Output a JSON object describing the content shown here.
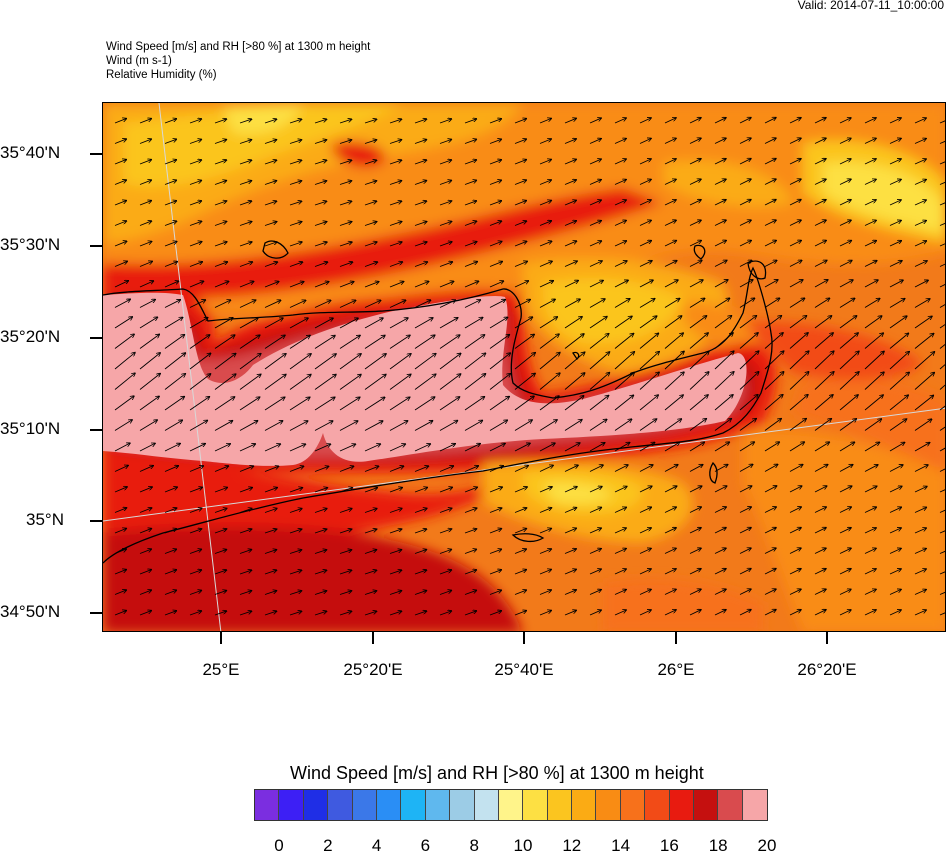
{
  "valid_time": "Valid: 2014-07-11_10:00:00",
  "titles": {
    "line1": "Wind Speed [m/s] and RH [>80 %] at 1300 m height",
    "line2": "Wind   (m s-1)",
    "line3": "Relative Humidity   (%)"
  },
  "axes": {
    "lat_labels": [
      "35°40'N",
      "35°30'N",
      "35°20'N",
      "35°10'N",
      "35°N",
      "34°50'N"
    ],
    "lon_labels": [
      "25°E",
      "25°20'E",
      "25°40'E",
      "26°E",
      "26°20'E"
    ]
  },
  "legend": {
    "title": "Wind Speed [m/s] and RH [>80 %] at 1300 m height",
    "labels": [
      "0",
      "2",
      "4",
      "6",
      "8",
      "10",
      "12",
      "14",
      "16",
      "18",
      "20"
    ],
    "colors": [
      "#7b2ee0",
      "#3d1ff5",
      "#1f2ee6",
      "#3f5ae0",
      "#3b78e8",
      "#2a8ef5",
      "#1eb4f5",
      "#5fb8ee",
      "#9ccce6",
      "#c3e2ef",
      "#fff48a",
      "#fde043",
      "#fbc51f",
      "#fbab14",
      "#f98c14",
      "#f7711b",
      "#f24b17",
      "#e81b10",
      "#c5100f",
      "#d94b4e",
      "#f6a6a8"
    ]
  },
  "colors": {
    "sea_background": "#f27a1a",
    "coastline": "#000000",
    "gridline": "#d0d0d0",
    "high_rh": "#f6a6a8"
  }
}
